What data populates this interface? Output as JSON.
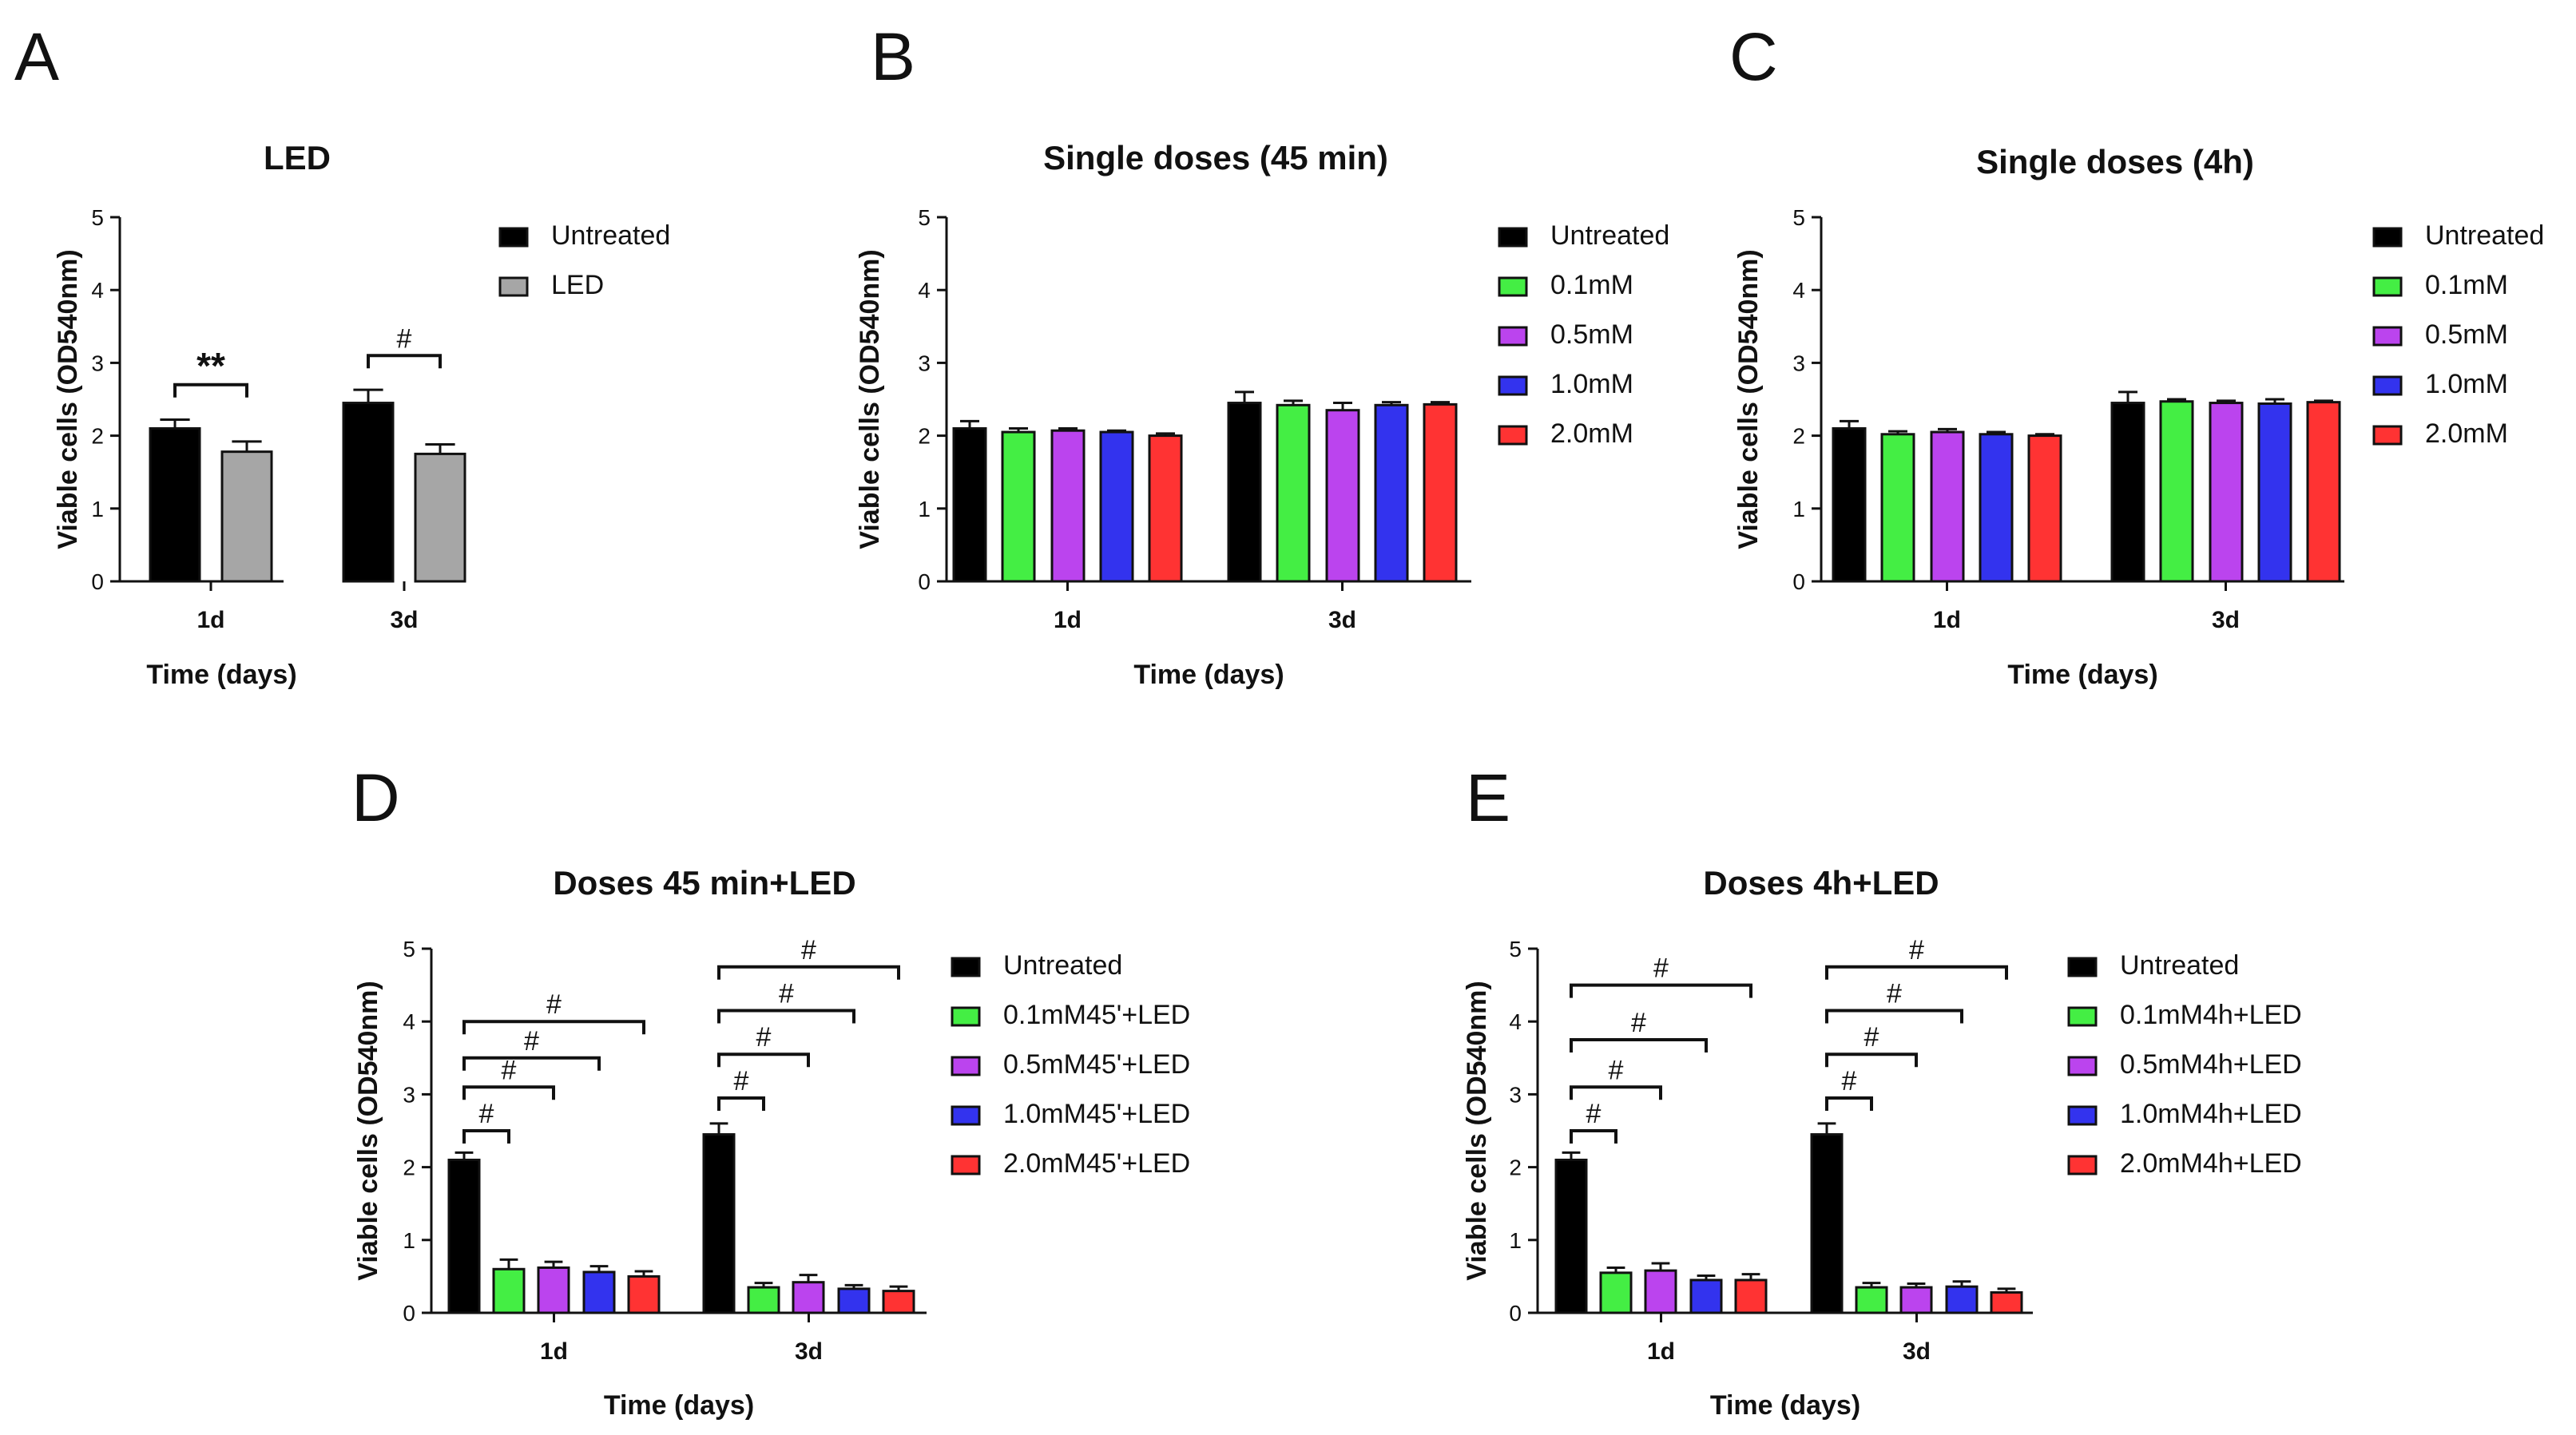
{
  "chart_data": [
    {
      "panel": "A",
      "type": "bar",
      "title": "LED",
      "xlabel": "Time (days)",
      "ylabel": "Viable cells (OD540nm)",
      "ylim": [
        0,
        5
      ],
      "yticks": [
        "0",
        "1",
        "2",
        "3",
        "4",
        "5"
      ],
      "categories": [
        "1d",
        "3d"
      ],
      "series": [
        {
          "name": "Untreated",
          "color": "#000000",
          "values": [
            2.1,
            2.45
          ],
          "errors": [
            0.12,
            0.18
          ]
        },
        {
          "name": "LED",
          "color": "#a6a6a6",
          "values": [
            1.78,
            1.75
          ],
          "errors": [
            0.14,
            0.13
          ]
        }
      ],
      "significance": [
        {
          "category": 0,
          "from": 0,
          "to": 1,
          "y": 2.7,
          "label": "**"
        },
        {
          "category": 1,
          "from": 0,
          "to": 1,
          "y": 3.1,
          "label": "#"
        }
      ]
    },
    {
      "panel": "B",
      "type": "bar",
      "title": "Single doses (45 min)",
      "xlabel": "Time (days)",
      "ylabel": "Viable cells (OD540nm)",
      "ylim": [
        0,
        5
      ],
      "yticks": [
        "0",
        "1",
        "2",
        "3",
        "4",
        "5"
      ],
      "categories": [
        "1d",
        "3d"
      ],
      "series": [
        {
          "name": "Untreated",
          "color": "#000000",
          "values": [
            2.1,
            2.45
          ],
          "errors": [
            0.1,
            0.15
          ]
        },
        {
          "name": "0.1mM",
          "color": "#44ee44",
          "values": [
            2.05,
            2.42
          ],
          "errors": [
            0.05,
            0.06
          ]
        },
        {
          "name": "0.5mM",
          "color": "#bb44ee",
          "values": [
            2.07,
            2.35
          ],
          "errors": [
            0.03,
            0.1
          ]
        },
        {
          "name": "1.0mM",
          "color": "#3333ee",
          "values": [
            2.05,
            2.42
          ],
          "errors": [
            0.02,
            0.04
          ]
        },
        {
          "name": "2.0mM",
          "color": "#ff3333",
          "values": [
            2.0,
            2.43
          ],
          "errors": [
            0.03,
            0.03
          ]
        }
      ],
      "significance": []
    },
    {
      "panel": "C",
      "type": "bar",
      "title": "Single doses (4h)",
      "xlabel": "Time (days)",
      "ylabel": "Viable cells (OD540nm)",
      "ylim": [
        0,
        5
      ],
      "yticks": [
        "0",
        "1",
        "2",
        "3",
        "4",
        "5"
      ],
      "categories": [
        "1d",
        "3d"
      ],
      "series": [
        {
          "name": "Untreated",
          "color": "#000000",
          "values": [
            2.1,
            2.45
          ],
          "errors": [
            0.1,
            0.15
          ]
        },
        {
          "name": "0.1mM",
          "color": "#44ee44",
          "values": [
            2.02,
            2.47
          ],
          "errors": [
            0.04,
            0.03
          ]
        },
        {
          "name": "0.5mM",
          "color": "#bb44ee",
          "values": [
            2.05,
            2.45
          ],
          "errors": [
            0.04,
            0.03
          ]
        },
        {
          "name": "1.0mM",
          "color": "#3333ee",
          "values": [
            2.02,
            2.44
          ],
          "errors": [
            0.03,
            0.06
          ]
        },
        {
          "name": "2.0mM",
          "color": "#ff3333",
          "values": [
            2.0,
            2.46
          ],
          "errors": [
            0.02,
            0.02
          ]
        }
      ],
      "significance": []
    },
    {
      "panel": "D",
      "type": "bar",
      "title": "Doses 45 min+LED",
      "xlabel": "Time (days)",
      "ylabel": "Viable cells (OD540nm)",
      "ylim": [
        0,
        5
      ],
      "yticks": [
        "0",
        "1",
        "2",
        "3",
        "4",
        "5"
      ],
      "categories": [
        "1d",
        "3d"
      ],
      "series": [
        {
          "name": "Untreated",
          "color": "#000000",
          "values": [
            2.1,
            2.45
          ],
          "errors": [
            0.1,
            0.15
          ]
        },
        {
          "name": "0.1mM45'+LED",
          "color": "#44ee44",
          "values": [
            0.6,
            0.35
          ],
          "errors": [
            0.13,
            0.06
          ]
        },
        {
          "name": "0.5mM45'+LED",
          "color": "#bb44ee",
          "values": [
            0.62,
            0.42
          ],
          "errors": [
            0.08,
            0.1
          ]
        },
        {
          "name": "1.0mM45'+LED",
          "color": "#3333ee",
          "values": [
            0.56,
            0.33
          ],
          "errors": [
            0.08,
            0.05
          ]
        },
        {
          "name": "2.0mM45'+LED",
          "color": "#ff3333",
          "values": [
            0.5,
            0.3
          ],
          "errors": [
            0.07,
            0.06
          ]
        }
      ],
      "significance": [
        {
          "category": 0,
          "from": 0,
          "to": 1,
          "y": 2.5,
          "label": "#"
        },
        {
          "category": 0,
          "from": 0,
          "to": 2,
          "y": 3.1,
          "label": "#"
        },
        {
          "category": 0,
          "from": 0,
          "to": 3,
          "y": 3.5,
          "label": "#"
        },
        {
          "category": 0,
          "from": 0,
          "to": 4,
          "y": 4.0,
          "label": "#"
        },
        {
          "category": 1,
          "from": 0,
          "to": 1,
          "y": 2.95,
          "label": "#"
        },
        {
          "category": 1,
          "from": 0,
          "to": 2,
          "y": 3.55,
          "label": "#"
        },
        {
          "category": 1,
          "from": 0,
          "to": 3,
          "y": 4.15,
          "label": "#"
        },
        {
          "category": 1,
          "from": 0,
          "to": 4,
          "y": 4.75,
          "label": "#"
        }
      ]
    },
    {
      "panel": "E",
      "type": "bar",
      "title": "Doses 4h+LED",
      "xlabel": "Time (days)",
      "ylabel": "Viable cells (OD540nm)",
      "ylim": [
        0,
        5
      ],
      "yticks": [
        "0",
        "1",
        "2",
        "3",
        "4",
        "5"
      ],
      "categories": [
        "1d",
        "3d"
      ],
      "series": [
        {
          "name": "Untreated",
          "color": "#000000",
          "values": [
            2.1,
            2.45
          ],
          "errors": [
            0.1,
            0.15
          ]
        },
        {
          "name": "0.1mM4h+LED",
          "color": "#44ee44",
          "values": [
            0.55,
            0.35
          ],
          "errors": [
            0.07,
            0.06
          ]
        },
        {
          "name": "0.5mM4h+LED",
          "color": "#bb44ee",
          "values": [
            0.58,
            0.35
          ],
          "errors": [
            0.1,
            0.05
          ]
        },
        {
          "name": "1.0mM4h+LED",
          "color": "#3333ee",
          "values": [
            0.45,
            0.36
          ],
          "errors": [
            0.06,
            0.07
          ]
        },
        {
          "name": "2.0mM4h+LED",
          "color": "#ff3333",
          "values": [
            0.45,
            0.28
          ],
          "errors": [
            0.08,
            0.05
          ]
        }
      ],
      "significance": [
        {
          "category": 0,
          "from": 0,
          "to": 1,
          "y": 2.5,
          "label": "#"
        },
        {
          "category": 0,
          "from": 0,
          "to": 2,
          "y": 3.1,
          "label": "#"
        },
        {
          "category": 0,
          "from": 0,
          "to": 3,
          "y": 3.75,
          "label": "#"
        },
        {
          "category": 0,
          "from": 0,
          "to": 4,
          "y": 4.5,
          "label": "#"
        },
        {
          "category": 1,
          "from": 0,
          "to": 1,
          "y": 2.95,
          "label": "#"
        },
        {
          "category": 1,
          "from": 0,
          "to": 2,
          "y": 3.55,
          "label": "#"
        },
        {
          "category": 1,
          "from": 0,
          "to": 3,
          "y": 4.15,
          "label": "#"
        },
        {
          "category": 1,
          "from": 0,
          "to": 4,
          "y": 4.75,
          "label": "#"
        }
      ]
    }
  ]
}
